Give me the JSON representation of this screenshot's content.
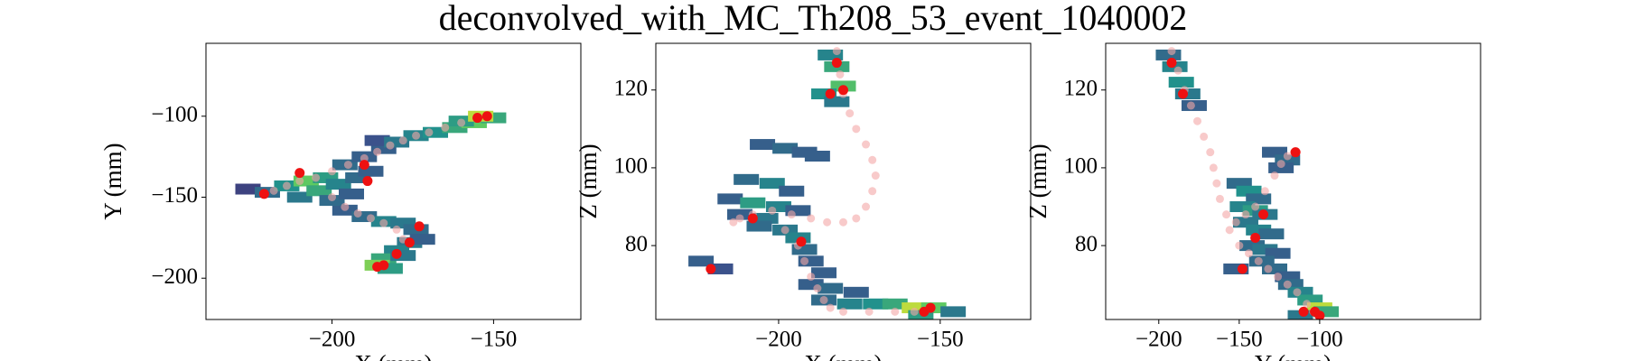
{
  "title": "deconvolved_with_MC_Th208_53_event_1040002",
  "chart_data": [
    {
      "type": "heatmap",
      "xlabel": "X (mm)",
      "ylabel": "Y (mm)",
      "xlim": [
        -239,
        -123
      ],
      "ylim": [
        -225.5,
        -55
      ],
      "xticks": [
        {
          "value": -200,
          "label": "−200"
        },
        {
          "value": -150,
          "label": "−150"
        }
      ],
      "yticks": [
        {
          "value": -200,
          "label": "−200"
        },
        {
          "value": -150,
          "label": "−150"
        },
        {
          "value": -100,
          "label": "−100"
        }
      ],
      "cells": {
        "x": [
          -226,
          -220,
          -214,
          -208,
          -202,
          -210,
          -204,
          -198,
          -196,
          -190,
          -184,
          -186,
          -180,
          -174,
          -168,
          -162,
          -156,
          -150,
          -160,
          -154,
          -192,
          -188,
          -196,
          -190,
          -184,
          -178,
          -174,
          -176,
          -180,
          -184,
          -186,
          -182,
          -178,
          -172,
          -200,
          -194
        ],
        "y": [
          -145,
          -147,
          -143,
          -140,
          -138,
          -150,
          -146,
          -142,
          -130,
          -125,
          -120,
          -115,
          -116,
          -112,
          -110,
          -107,
          -104,
          -101,
          -103,
          -100,
          -138,
          -134,
          -158,
          -162,
          -165,
          -166,
          -170,
          -178,
          -183,
          -188,
          -192,
          -194,
          -186,
          -176,
          -152,
          -148
        ],
        "values": [
          0.2,
          0.35,
          0.5,
          0.75,
          0.55,
          0.4,
          0.6,
          0.45,
          0.35,
          0.3,
          0.3,
          0.25,
          0.4,
          0.45,
          0.5,
          0.6,
          0.75,
          0.6,
          0.55,
          0.9,
          0.35,
          0.3,
          0.3,
          0.35,
          0.45,
          0.4,
          0.35,
          0.4,
          0.45,
          0.6,
          0.8,
          0.55,
          0.4,
          0.3,
          0.35,
          0.3
        ]
      },
      "track": {
        "color": "#f4a6a6",
        "x": [
          -218,
          -214,
          -210,
          -205,
          -200,
          -195,
          -190,
          -186,
          -182,
          -178,
          -174,
          -170,
          -165,
          -160,
          -155,
          -200,
          -196,
          -192,
          -188,
          -184,
          -180,
          -178
        ],
        "y": [
          -146,
          -143,
          -140,
          -138,
          -134,
          -130,
          -126,
          -122,
          -118,
          -115,
          -112,
          -110,
          -107,
          -104,
          -101,
          -150,
          -156,
          -160,
          -163,
          -166,
          -170,
          -176
        ]
      },
      "hits": {
        "color": "#ee1111",
        "x": [
          -221,
          -210,
          -189,
          -190,
          -155,
          -152,
          -173,
          -176,
          -180,
          -184,
          -186
        ],
        "y": [
          -148,
          -135,
          -140,
          -130,
          -101,
          -100,
          -168,
          -178,
          -185,
          -192,
          -193
        ]
      }
    },
    {
      "type": "heatmap",
      "xlabel": "X (mm)",
      "ylabel": "Z (mm)",
      "xlim": [
        -238,
        -122
      ],
      "ylim": [
        61,
        132
      ],
      "xticks": [
        {
          "value": -200,
          "label": "−200"
        },
        {
          "value": -150,
          "label": "−150"
        }
      ],
      "yticks": [
        80,
        100,
        120
      ],
      "cells": {
        "x": [
          -184,
          -182,
          -180,
          -186,
          -182,
          -205,
          -198,
          -192,
          -188,
          -210,
          -202,
          -196,
          -215,
          -208,
          -200,
          -194,
          -212,
          -204,
          -206,
          -198,
          -194,
          -192,
          -190,
          -186,
          -190,
          -184,
          -176,
          -186,
          -178,
          -170,
          -164,
          -158,
          -152,
          -146,
          -156,
          -224,
          -218
        ],
        "y": [
          129,
          126,
          121,
          119,
          117,
          106,
          105,
          104,
          103,
          97,
          96,
          94,
          92,
          91,
          90,
          89,
          88,
          87,
          85,
          84,
          82,
          79,
          76,
          73,
          70,
          69,
          68,
          66,
          65,
          65,
          65,
          64,
          64,
          63,
          62,
          76,
          74
        ],
        "values": [
          0.45,
          0.6,
          0.7,
          0.5,
          0.4,
          0.3,
          0.35,
          0.3,
          0.3,
          0.35,
          0.45,
          0.3,
          0.3,
          0.55,
          0.45,
          0.3,
          0.3,
          0.4,
          0.35,
          0.4,
          0.45,
          0.35,
          0.3,
          0.3,
          0.3,
          0.35,
          0.3,
          0.35,
          0.45,
          0.5,
          0.6,
          0.9,
          0.75,
          0.4,
          0.55,
          0.3,
          0.25
        ]
      },
      "track": {
        "color": "#f4a6a6",
        "x": [
          -182,
          -181,
          -180,
          -178,
          -176,
          -173,
          -171,
          -170,
          -171,
          -173,
          -176,
          -180,
          -185,
          -190,
          -196,
          -202,
          -208,
          -212,
          -214,
          -198,
          -194,
          -192,
          -190,
          -188,
          -186,
          -184,
          -180,
          -172,
          -164,
          -158
        ],
        "y": [
          130,
          124,
          119,
          114,
          110,
          106,
          102,
          98,
          94,
          90,
          87,
          86,
          86,
          87,
          88,
          89,
          88,
          87,
          86,
          84,
          80,
          76,
          72,
          69,
          66,
          64,
          63,
          63,
          63,
          63
        ]
      },
      "hits": {
        "color": "#ee1111",
        "x": [
          -182,
          -180,
          -184,
          -221,
          -208,
          -193,
          -155,
          -153
        ],
        "y": [
          127,
          120,
          119,
          74,
          87,
          81,
          63,
          64
        ]
      }
    },
    {
      "type": "heatmap",
      "xlabel": "Y (mm)",
      "ylabel": "Z (mm)",
      "xlim": [
        -233,
        0
      ],
      "ylim": [
        61,
        132
      ],
      "xticks": [
        {
          "value": -200,
          "label": "−200"
        },
        {
          "value": -150,
          "label": "−150"
        },
        {
          "value": -100,
          "label": "−100"
        }
      ],
      "yticks": [
        80,
        100,
        120
      ],
      "cells": {
        "x": [
          -194,
          -190,
          -186,
          -182,
          -178,
          -128,
          -120,
          -124,
          -150,
          -144,
          -138,
          -148,
          -140,
          -134,
          -146,
          -138,
          -130,
          -142,
          -134,
          -126,
          -136,
          -128,
          -120,
          -118,
          -112,
          -106,
          -100,
          -96,
          -112,
          -152
        ],
        "y": [
          129,
          126,
          122,
          119,
          116,
          104,
          102,
          100,
          96,
          94,
          92,
          90,
          89,
          88,
          86,
          84,
          83,
          80,
          79,
          78,
          76,
          74,
          72,
          70,
          68,
          66,
          64,
          63,
          62,
          74
        ],
        "values": [
          0.35,
          0.45,
          0.5,
          0.4,
          0.3,
          0.3,
          0.35,
          0.3,
          0.35,
          0.5,
          0.35,
          0.45,
          0.55,
          0.4,
          0.4,
          0.45,
          0.35,
          0.35,
          0.4,
          0.3,
          0.35,
          0.35,
          0.3,
          0.35,
          0.45,
          0.55,
          0.9,
          0.6,
          0.4,
          0.3
        ]
      },
      "track": {
        "color": "#f4a6a6",
        "x": [
          -192,
          -188,
          -184,
          -180,
          -176,
          -172,
          -168,
          -166,
          -164,
          -162,
          -158,
          -152,
          -146,
          -140,
          -134,
          -128,
          -124,
          -120,
          -116,
          -156,
          -150,
          -144,
          -138,
          -132,
          -126,
          -120,
          -114,
          -108,
          -104
        ],
        "y": [
          130,
          125,
          120,
          116,
          112,
          108,
          104,
          100,
          96,
          92,
          88,
          86,
          88,
          90,
          94,
          98,
          101,
          103,
          104,
          84,
          80,
          78,
          76,
          74,
          72,
          70,
          68,
          65,
          63
        ]
      },
      "hits": {
        "color": "#ee1111",
        "x": [
          -192,
          -185,
          -115,
          -135,
          -140,
          -148,
          -110,
          -103,
          -100
        ],
        "y": [
          127,
          119,
          104,
          88,
          82,
          74,
          63,
          63,
          62
        ]
      }
    }
  ]
}
